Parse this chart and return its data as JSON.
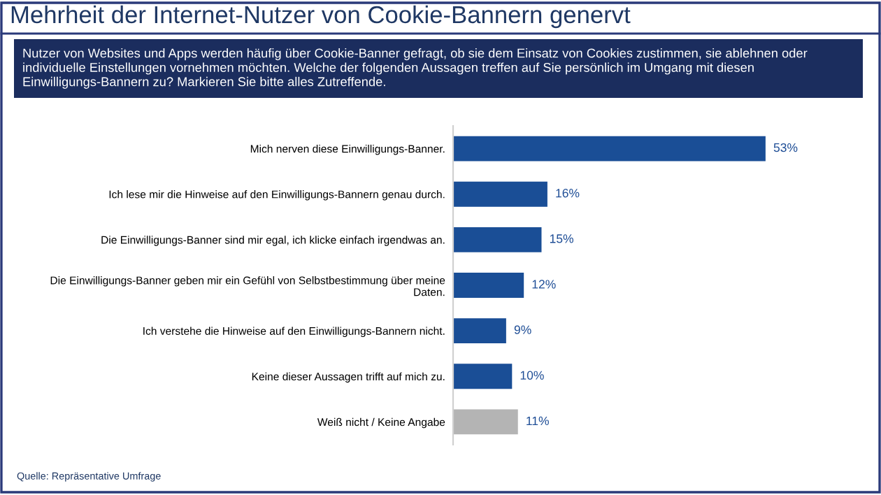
{
  "chart_data": {
    "type": "bar",
    "orientation": "horizontal",
    "title": "Mehrheit der Internet-Nutzer von Cookie-Bannern genervt",
    "subtitle": "Nutzer von Websites und Apps werden häufig über Cookie-Banner gefragt, ob sie dem Einsatz von Cookies zustimmen, sie ablehnen oder\nindividuelle Einstellungen vornehmen möchten. Welche der folgenden Aussagen treffen auf Sie persönlich im Umgang mit diesen\nEinwilligungs-Bannern zu? Markieren Sie bitte alles Zutreffende.",
    "categories": [
      "Mich nerven diese Einwilligungs-Banner.",
      "Ich lese mir die Hinweise auf den Einwilligungs-Bannern genau durch.",
      "Die Einwilligungs-Banner sind mir egal, ich klicke einfach irgendwas an.",
      "Die Einwilligungs-Banner geben mir ein Gefühl von Selbstbestimmung über meine\nDaten.",
      "Ich verstehe die Hinweise auf den Einwilligungs-Bannern nicht.",
      "Keine dieser Aussagen trifft auf mich zu.",
      "Weiß nicht / Keine Angabe"
    ],
    "values": [
      53,
      16,
      15,
      12,
      9,
      10,
      11
    ],
    "colors": [
      "#1a4e96",
      "#1a4e96",
      "#1a4e96",
      "#1a4e96",
      "#1a4e96",
      "#1a4e96",
      "#b4b4b4"
    ],
    "value_labels": [
      "53%",
      "16%",
      "15%",
      "12%",
      "9%",
      "10%",
      "11%"
    ],
    "annotations": [
      "Quelle: Repräsentative Umfrage"
    ],
    "grid": false,
    "legend": false
  }
}
